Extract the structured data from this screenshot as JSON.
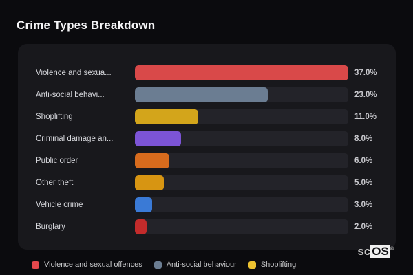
{
  "page_title": "Crime Types Breakdown",
  "logo": {
    "prefix": "sc",
    "suffix": "OS",
    "mark": "®"
  },
  "chart_data": {
    "type": "bar",
    "orientation": "horizontal",
    "title": "Crime Types Breakdown",
    "categories": [
      "Violence and sexua...",
      "Anti-social behavi...",
      "Shoplifting",
      "Criminal damage an...",
      "Public order",
      "Other theft",
      "Vehicle crime",
      "Burglary"
    ],
    "values": [
      37.0,
      23.0,
      11.0,
      8.0,
      6.0,
      5.0,
      3.0,
      2.0
    ],
    "value_labels": [
      "37.0%",
      "23.0%",
      "11.0%",
      "8.0%",
      "6.0%",
      "5.0%",
      "3.0%",
      "2.0%"
    ],
    "bar_colors": [
      "#d94949",
      "#6b7d92",
      "#d3a51b",
      "#7c54d6",
      "#d76b1d",
      "#d79512",
      "#3a7ad6",
      "#c32b2b"
    ],
    "xlabel": "",
    "ylabel": "",
    "xmax": 37.0,
    "grid": false,
    "legend_position": "bottom",
    "legend": [
      {
        "label": "Violence and sexual offences",
        "color": "#e5484d"
      },
      {
        "label": "Anti-social behaviour",
        "color": "#6b7d92"
      },
      {
        "label": "Shoplifting",
        "color": "#ecc230"
      }
    ],
    "colors": {
      "page_background": "#0b0b0e",
      "card_background": "#18181c",
      "track_background": "#232329",
      "label_text": "#d4d5da",
      "value_text": "#c9c9ce",
      "title_text": "#f5f5f7"
    }
  }
}
